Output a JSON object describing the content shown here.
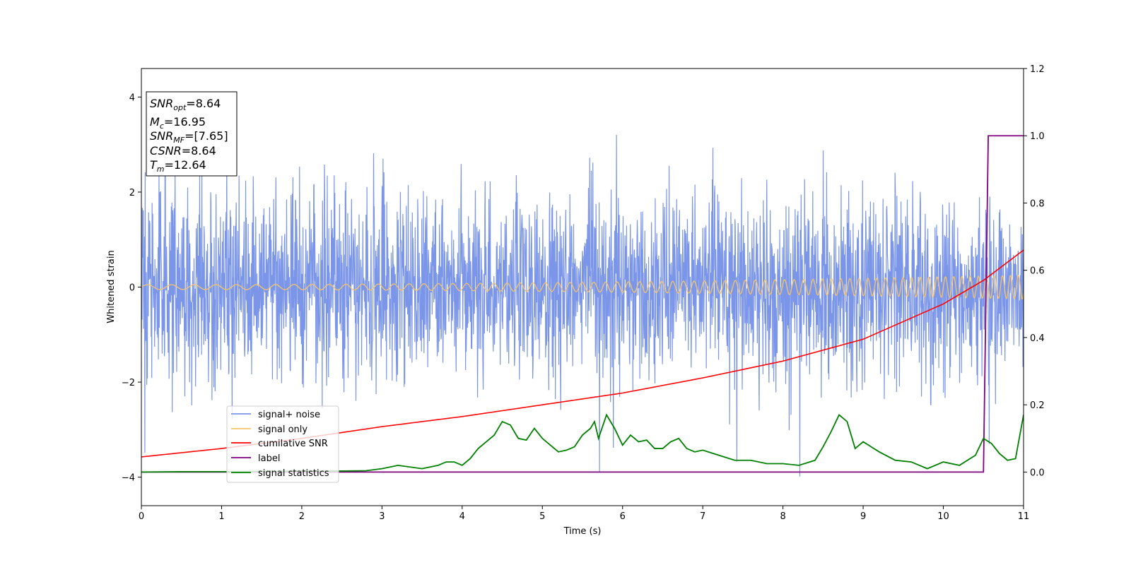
{
  "chart_data": {
    "type": "line",
    "xlabel": "Time (s)",
    "ylabel": "Whitened strain",
    "xlim": [
      0,
      11
    ],
    "ylim_left": [
      -4.6,
      4.6
    ],
    "ylim_right": [
      -0.1,
      1.2
    ],
    "x_ticks": [
      "0",
      "1",
      "2",
      "3",
      "4",
      "5",
      "6",
      "7",
      "8",
      "9",
      "10",
      "11"
    ],
    "y_ticks_left": [
      "−4",
      "−2",
      "0",
      "2",
      "4"
    ],
    "y_ticks_right": [
      "0.0",
      "0.2",
      "0.4",
      "0.6",
      "0.8",
      "1.0",
      "1.2"
    ],
    "grid": false,
    "legend_position": "lower-left",
    "info_box": {
      "snr_opt": {
        "base": "SNR",
        "sub": "opt",
        "value": "=8.64"
      },
      "mc": {
        "base": "M",
        "sub": "c",
        "value": "=16.95"
      },
      "snr_mf": {
        "base": "SNR",
        "sub": "MF",
        "value": "=[7.65]"
      },
      "csnr": {
        "base": "CSNR",
        "value": "=8.64"
      },
      "tm": {
        "base": "T",
        "sub": "m",
        "value": "=12.64"
      }
    },
    "series": [
      {
        "name": "signal+ noise",
        "axis": "left",
        "color": "#7b96e8",
        "style": "gaussian noise, std ≈ 1.0, peaks ≈ ±3.5, sample spacing ≈ 0.004 s",
        "noise_std": 1.0
      },
      {
        "name": "signal only",
        "axis": "left",
        "color": "#f5c46a",
        "style": "chirp, amplitude 0.05 at t=0 rising to 0.25 at t=11",
        "amplitude_start": 0.05,
        "amplitude_end": 0.25
      },
      {
        "name": "cumilative SNR",
        "axis": "right",
        "color": "#ff0000",
        "x": [
          0,
          1,
          2,
          3,
          4,
          5,
          6,
          7,
          8,
          9,
          10,
          10.5,
          11
        ],
        "y": [
          0.045,
          0.07,
          0.1,
          0.135,
          0.165,
          0.2,
          0.235,
          0.28,
          0.33,
          0.395,
          0.5,
          0.57,
          0.66
        ]
      },
      {
        "name": "label",
        "axis": "right",
        "color": "#800080",
        "x": [
          0,
          10.5,
          10.56,
          11
        ],
        "y": [
          0,
          0,
          1,
          1
        ]
      },
      {
        "name": "signal statistics",
        "axis": "right",
        "color": "#008000",
        "x": [
          0,
          0.5,
          1,
          1.5,
          2,
          2.5,
          2.8,
          3,
          3.2,
          3.5,
          3.7,
          3.8,
          3.9,
          4,
          4.1,
          4.2,
          4.3,
          4.4,
          4.5,
          4.6,
          4.7,
          4.8,
          4.9,
          5,
          5.1,
          5.2,
          5.3,
          5.4,
          5.5,
          5.6,
          5.65,
          5.7,
          5.8,
          5.9,
          6,
          6.1,
          6.2,
          6.3,
          6.4,
          6.5,
          6.6,
          6.7,
          6.8,
          6.9,
          7,
          7.2,
          7.4,
          7.6,
          7.8,
          8,
          8.2,
          8.4,
          8.5,
          8.6,
          8.7,
          8.8,
          8.9,
          9,
          9.2,
          9.4,
          9.6,
          9.8,
          10,
          10.2,
          10.4,
          10.5,
          10.6,
          10.7,
          10.8,
          10.9,
          11
        ],
        "y": [
          0.0,
          0.001,
          0.001,
          0.002,
          0.003,
          0.003,
          0.004,
          0.01,
          0.02,
          0.01,
          0.02,
          0.03,
          0.03,
          0.02,
          0.04,
          0.07,
          0.09,
          0.11,
          0.15,
          0.14,
          0.1,
          0.095,
          0.13,
          0.1,
          0.08,
          0.06,
          0.065,
          0.075,
          0.11,
          0.13,
          0.15,
          0.1,
          0.17,
          0.13,
          0.08,
          0.11,
          0.09,
          0.095,
          0.07,
          0.07,
          0.09,
          0.1,
          0.07,
          0.06,
          0.065,
          0.05,
          0.035,
          0.035,
          0.025,
          0.025,
          0.02,
          0.035,
          0.075,
          0.12,
          0.17,
          0.15,
          0.07,
          0.09,
          0.06,
          0.035,
          0.03,
          0.01,
          0.03,
          0.02,
          0.05,
          0.1,
          0.085,
          0.055,
          0.035,
          0.04,
          0.17
        ]
      }
    ]
  }
}
